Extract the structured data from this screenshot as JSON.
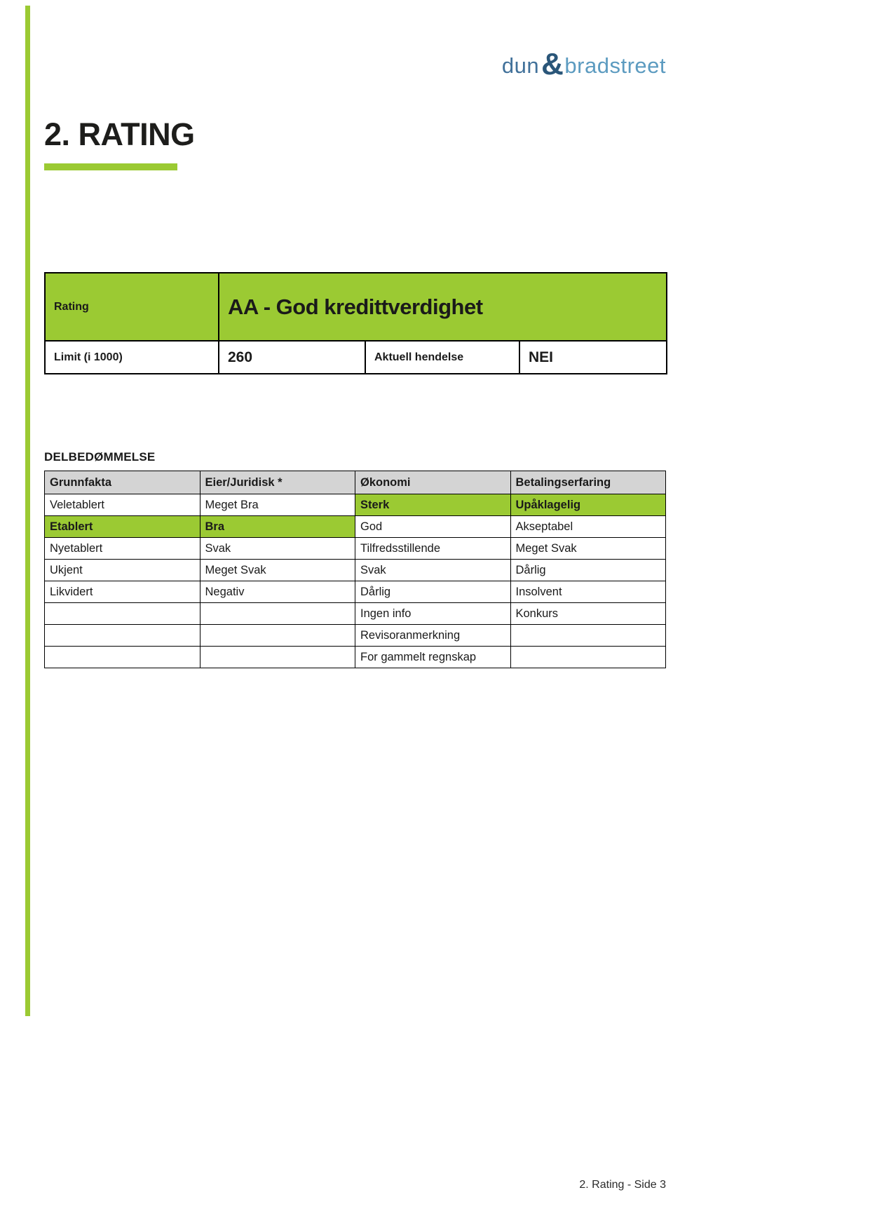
{
  "logo": {
    "word1": "dun",
    "ampersand": "&",
    "word2": "bradstreet"
  },
  "title": "2. RATING",
  "rating_box": {
    "rating_label": "Rating",
    "rating_value": "AA - God kredittverdighet",
    "limit_label": "Limit (i 1000)",
    "limit_value": "260",
    "event_label": "Aktuell hendelse",
    "event_value": "NEI"
  },
  "assessment": {
    "heading": "DELBEDØMMELSE",
    "columns": [
      "Grunnfakta",
      "Eier/Juridisk *",
      "Økonomi",
      "Betalingserfaring"
    ],
    "rows": [
      [
        {
          "t": "Veletablert",
          "hl": false
        },
        {
          "t": "Meget Bra",
          "hl": false
        },
        {
          "t": "Sterk",
          "hl": true
        },
        {
          "t": "Upåklagelig",
          "hl": true
        }
      ],
      [
        {
          "t": "Etablert",
          "hl": true
        },
        {
          "t": "Bra",
          "hl": true
        },
        {
          "t": "God",
          "hl": false
        },
        {
          "t": "Akseptabel",
          "hl": false
        }
      ],
      [
        {
          "t": "Nyetablert",
          "hl": false
        },
        {
          "t": "Svak",
          "hl": false
        },
        {
          "t": "Tilfredsstillende",
          "hl": false
        },
        {
          "t": "Meget Svak",
          "hl": false
        }
      ],
      [
        {
          "t": "Ukjent",
          "hl": false
        },
        {
          "t": "Meget Svak",
          "hl": false
        },
        {
          "t": "Svak",
          "hl": false
        },
        {
          "t": "Dårlig",
          "hl": false
        }
      ],
      [
        {
          "t": "Likvidert",
          "hl": false
        },
        {
          "t": "Negativ",
          "hl": false
        },
        {
          "t": "Dårlig",
          "hl": false
        },
        {
          "t": "Insolvent",
          "hl": false
        }
      ],
      [
        {
          "t": "",
          "hl": false
        },
        {
          "t": "",
          "hl": false
        },
        {
          "t": "Ingen info",
          "hl": false
        },
        {
          "t": "Konkurs",
          "hl": false
        }
      ],
      [
        {
          "t": "",
          "hl": false
        },
        {
          "t": "",
          "hl": false
        },
        {
          "t": "Revisoranmerkning",
          "hl": false
        },
        {
          "t": "",
          "hl": false
        }
      ],
      [
        {
          "t": "",
          "hl": false
        },
        {
          "t": "",
          "hl": false
        },
        {
          "t": "For gammelt regnskap",
          "hl": false
        },
        {
          "t": "",
          "hl": false
        }
      ]
    ]
  },
  "footer": "2. Rating - Side 3",
  "colors": {
    "accent_green": "#9BCA33",
    "header_gray": "#D4D4D4",
    "logo_dun_blue": "#41719A",
    "logo_amp_navy": "#2A5679",
    "logo_bradstreet_blue": "#5C9BC0",
    "text_black": "#1A1A1A"
  }
}
